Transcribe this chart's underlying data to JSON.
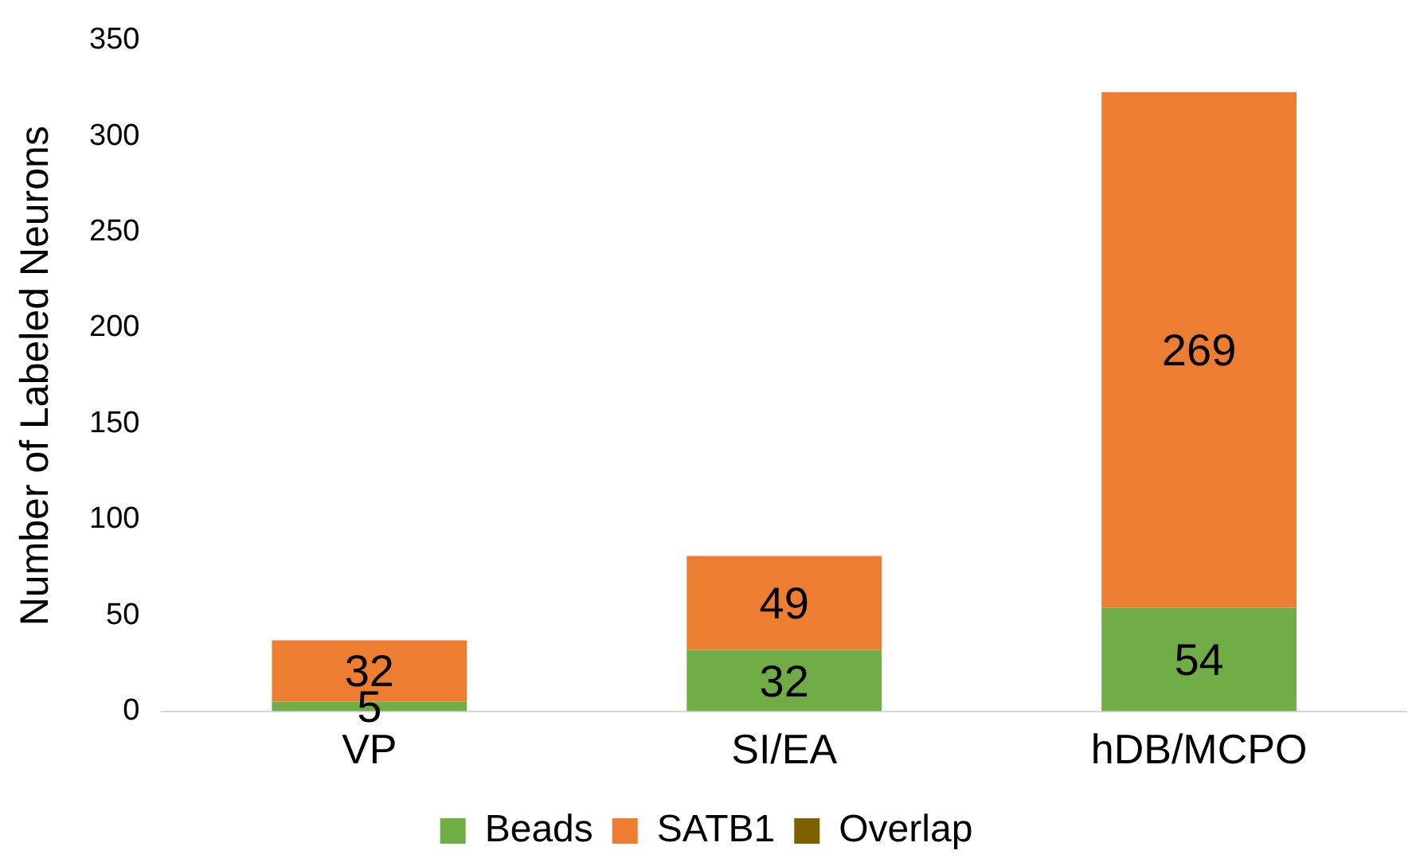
{
  "chart_data": {
    "type": "bar",
    "ylabel": "Number of Labeled Neurons",
    "categories": [
      "VP",
      "SI/EA",
      "hDB/MCPO"
    ],
    "stacked": true,
    "grid": false,
    "legend": "bottom",
    "ylim": [
      0,
      350
    ],
    "yticks": [
      0,
      50,
      100,
      150,
      200,
      250,
      300,
      350
    ],
    "series": [
      {
        "name": "Beads",
        "color": "#70ad47",
        "values": [
          5,
          32,
          54
        ],
        "value_labels": [
          "5",
          "32",
          "54"
        ]
      },
      {
        "name": "SATB1",
        "color": "#ed7d31",
        "values": [
          32,
          49,
          269
        ],
        "value_labels": [
          "32",
          "49",
          "269"
        ]
      },
      {
        "name": "Overlap",
        "color": "#7f6000",
        "values": [
          0,
          0,
          0
        ],
        "value_labels": [
          null,
          null,
          null
        ]
      }
    ]
  }
}
